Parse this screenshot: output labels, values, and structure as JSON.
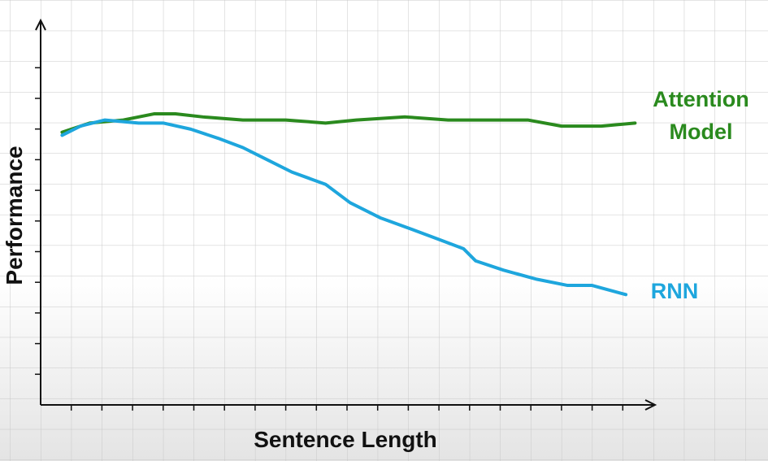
{
  "chart_data": {
    "type": "line",
    "x_label": "Sentence Length",
    "y_label": "Performance",
    "xlim": [
      0,
      20
    ],
    "ylim": [
      0,
      12.5
    ],
    "series": [
      {
        "name": "Attention Model",
        "color": "#2a8a1e",
        "x": [
          0.7,
          1.6,
          2.7,
          3.7,
          4.4,
          5.3,
          6.6,
          8.0,
          9.3,
          10.3,
          11.9,
          13.3,
          14.6,
          15.9,
          17.0,
          18.3,
          19.4
        ],
        "values": [
          8.9,
          9.2,
          9.3,
          9.5,
          9.5,
          9.4,
          9.3,
          9.3,
          9.2,
          9.3,
          9.4,
          9.3,
          9.3,
          9.3,
          9.1,
          9.1,
          9.2
        ]
      },
      {
        "name": "RNN",
        "color": "#1ea6dd",
        "x": [
          0.7,
          1.3,
          2.1,
          3.2,
          4.0,
          4.9,
          5.8,
          6.6,
          7.4,
          8.2,
          9.3,
          10.1,
          11.1,
          12.2,
          13.0,
          13.8,
          14.2,
          15.1,
          16.2,
          17.2,
          18.0,
          19.1
        ],
        "values": [
          8.8,
          9.1,
          9.3,
          9.2,
          9.2,
          9.0,
          8.7,
          8.4,
          8.0,
          7.6,
          7.2,
          6.6,
          6.1,
          5.7,
          5.4,
          5.1,
          4.7,
          4.4,
          4.1,
          3.9,
          3.9,
          3.6
        ]
      }
    ]
  }
}
